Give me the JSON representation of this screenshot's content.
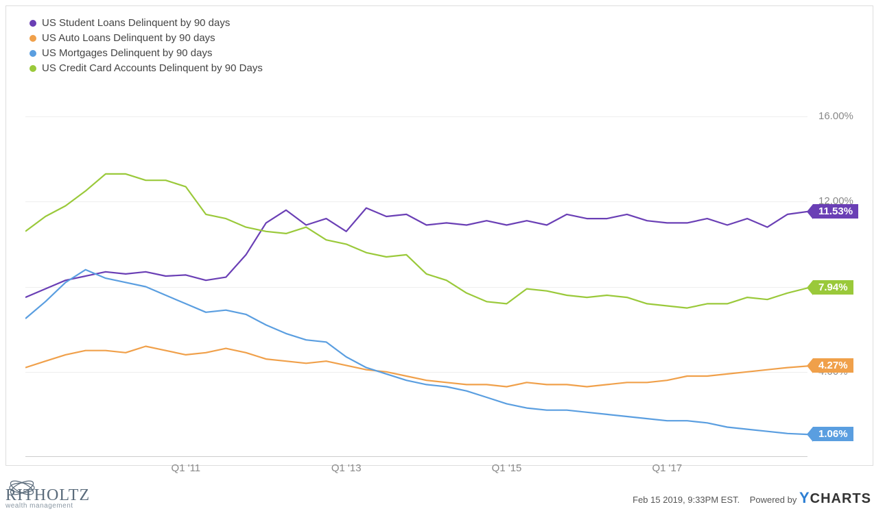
{
  "chart": {
    "type": "line",
    "ylim": [
      0,
      17
    ],
    "ytick_vals": [
      4,
      8,
      12,
      16
    ],
    "ytick_labels": [
      "4.00%",
      "8.00%",
      "12.00%",
      "16.00%"
    ],
    "x_categories": [
      "Q1 '09",
      "Q3 '09",
      "Q1 '10",
      "Q3 '10",
      "Q1 '11",
      "Q3 '11",
      "Q1 '12",
      "Q3 '12",
      "Q1 '13",
      "Q3 '13",
      "Q1 '14",
      "Q3 '14",
      "Q1 '15",
      "Q3 '15",
      "Q1 '16",
      "Q3 '16",
      "Q1 '17",
      "Q3 '17",
      "Q1 '18",
      "Q3 '18"
    ],
    "xtick_show_idx": [
      4,
      8,
      12,
      16
    ],
    "grid_color": "#eeeeee",
    "axis_color": "#cccccc",
    "background_color": "#ffffff",
    "label_fontsize": 15,
    "label_color": "#888888",
    "legend_fontsize": 15,
    "legend_color": "#444444",
    "line_width": 2.2,
    "endflag_fontsize": 15,
    "series": [
      {
        "name": "US Student Loans Delinquent by 90 days",
        "color": "#6a3fb5",
        "end_label": "11.53%",
        "values": [
          7.5,
          7.9,
          8.3,
          8.5,
          8.7,
          8.6,
          8.7,
          8.5,
          8.55,
          8.3,
          8.45,
          9.5,
          11.0,
          11.6,
          10.9,
          11.2,
          10.6,
          11.7,
          11.3,
          11.4,
          10.9,
          11.0,
          10.9,
          11.1,
          10.9,
          11.1,
          10.9,
          11.4,
          11.2,
          11.2,
          11.4,
          11.1,
          11.0,
          11.0,
          11.2,
          10.9,
          11.2,
          10.8,
          11.4,
          11.53
        ]
      },
      {
        "name": "US Auto Loans Delinquent by 90 days",
        "color": "#f0a04a",
        "end_label": "4.27%",
        "values": [
          4.2,
          4.5,
          4.8,
          5.0,
          5.0,
          4.9,
          5.2,
          5.0,
          4.8,
          4.9,
          5.1,
          4.9,
          4.6,
          4.5,
          4.4,
          4.5,
          4.3,
          4.1,
          4.0,
          3.8,
          3.6,
          3.5,
          3.4,
          3.4,
          3.3,
          3.5,
          3.4,
          3.4,
          3.3,
          3.4,
          3.5,
          3.5,
          3.6,
          3.8,
          3.8,
          3.9,
          4.0,
          4.1,
          4.2,
          4.27
        ]
      },
      {
        "name": "US Mortgages Delinquent by 90 days",
        "color": "#5a9ee0",
        "end_label": "1.06%",
        "values": [
          6.5,
          7.3,
          8.2,
          8.8,
          8.4,
          8.2,
          8.0,
          7.6,
          7.2,
          6.8,
          6.9,
          6.7,
          6.2,
          5.8,
          5.5,
          5.4,
          4.7,
          4.2,
          3.9,
          3.6,
          3.4,
          3.3,
          3.1,
          2.8,
          2.5,
          2.3,
          2.2,
          2.2,
          2.1,
          2.0,
          1.9,
          1.8,
          1.7,
          1.7,
          1.6,
          1.4,
          1.3,
          1.2,
          1.1,
          1.06
        ]
      },
      {
        "name": "US Credit Card Accounts Delinquent by 90 Days",
        "color": "#9ac93a",
        "end_label": "7.94%",
        "values": [
          10.6,
          11.3,
          11.8,
          12.5,
          13.3,
          13.3,
          13.0,
          13.0,
          12.7,
          11.4,
          11.2,
          10.8,
          10.6,
          10.5,
          10.8,
          10.2,
          10.0,
          9.6,
          9.4,
          9.5,
          8.6,
          8.3,
          7.7,
          7.3,
          7.2,
          7.9,
          7.8,
          7.6,
          7.5,
          7.6,
          7.5,
          7.2,
          7.1,
          7.0,
          7.2,
          7.2,
          7.5,
          7.4,
          7.7,
          7.94
        ]
      }
    ]
  },
  "footer": {
    "brand_main": "RITHOLTZ",
    "brand_sub": "wealth management",
    "timestamp": "Feb 15 2019, 9:33PM EST.",
    "powered_by": "Powered by",
    "ycharts_y": "Y",
    "ycharts_rest": "CHARTS"
  }
}
